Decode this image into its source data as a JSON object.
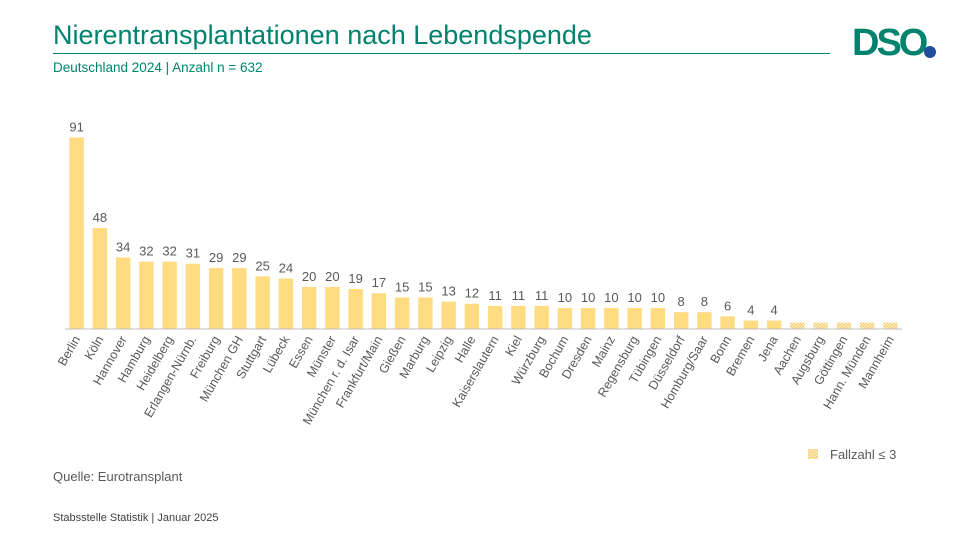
{
  "header": {
    "title": "Nierentransplantationen nach Lebendspende",
    "subtitle": "Deutschland 2024 | Anzahl n = 632",
    "logo_text": "DSO."
  },
  "colors": {
    "accent": "#00836e",
    "logo_dot": "#1f4e9c",
    "bar": "#ffdb82",
    "bar_hatch": "#f2c969",
    "axis": "#bfbfbf",
    "label": "#595959"
  },
  "chart_data": {
    "type": "bar",
    "title": "Nierentransplantationen nach Lebendspende",
    "subtitle": "Deutschland 2024 | Anzahl n = 632",
    "xlabel": "",
    "ylabel": "",
    "grid": false,
    "categories": [
      "Berlin",
      "Köln",
      "Hannover",
      "Hamburg",
      "Heidelberg",
      "Erlangen-Nürnb.",
      "Freiburg",
      "München GH",
      "Stuttgart",
      "Lübeck",
      "Essen",
      "Münster",
      "München r. d. Isar",
      "Frankfurt/Main",
      "Gießen",
      "Marburg",
      "Leipzig",
      "Halle",
      "Kaiserslautern",
      "Kiel",
      "Würzburg",
      "Bochum",
      "Dresden",
      "Mainz",
      "Regensburg",
      "Tübingen",
      "Düsseldorf",
      "Homburg/Saar",
      "Bonn",
      "Bremen",
      "Jena",
      "Aachen",
      "Augsburg",
      "Göttingen",
      "Hann. Münden",
      "Mannheim"
    ],
    "values": [
      91,
      48,
      34,
      32,
      32,
      31,
      29,
      29,
      25,
      24,
      20,
      20,
      19,
      17,
      15,
      15,
      13,
      12,
      11,
      11,
      11,
      10,
      10,
      10,
      10,
      10,
      8,
      8,
      6,
      4,
      4,
      null,
      null,
      null,
      null,
      null
    ],
    "value_labels": [
      "91",
      "48",
      "34",
      "32",
      "32",
      "31",
      "29",
      "29",
      "25",
      "24",
      "20",
      "20",
      "19",
      "17",
      "15",
      "15",
      "13",
      "12",
      "11",
      "11",
      "11",
      "10",
      "10",
      "10",
      "10",
      "10",
      "8",
      "8",
      "6",
      "4",
      "4",
      "",
      "",
      "",
      "",
      ""
    ],
    "suppressed": [
      false,
      false,
      false,
      false,
      false,
      false,
      false,
      false,
      false,
      false,
      false,
      false,
      false,
      false,
      false,
      false,
      false,
      false,
      false,
      false,
      false,
      false,
      false,
      false,
      false,
      false,
      false,
      false,
      false,
      false,
      false,
      true,
      true,
      true,
      true,
      true
    ],
    "suppressed_display_value": 3,
    "ylim": [
      0,
      95
    ],
    "legend": {
      "placement": "bottom-right",
      "label": "Fallzahl ≤ 3"
    }
  },
  "source": "Quelle: Eurotransplant",
  "footer": "Stabsstelle Statistik | Januar 2025"
}
